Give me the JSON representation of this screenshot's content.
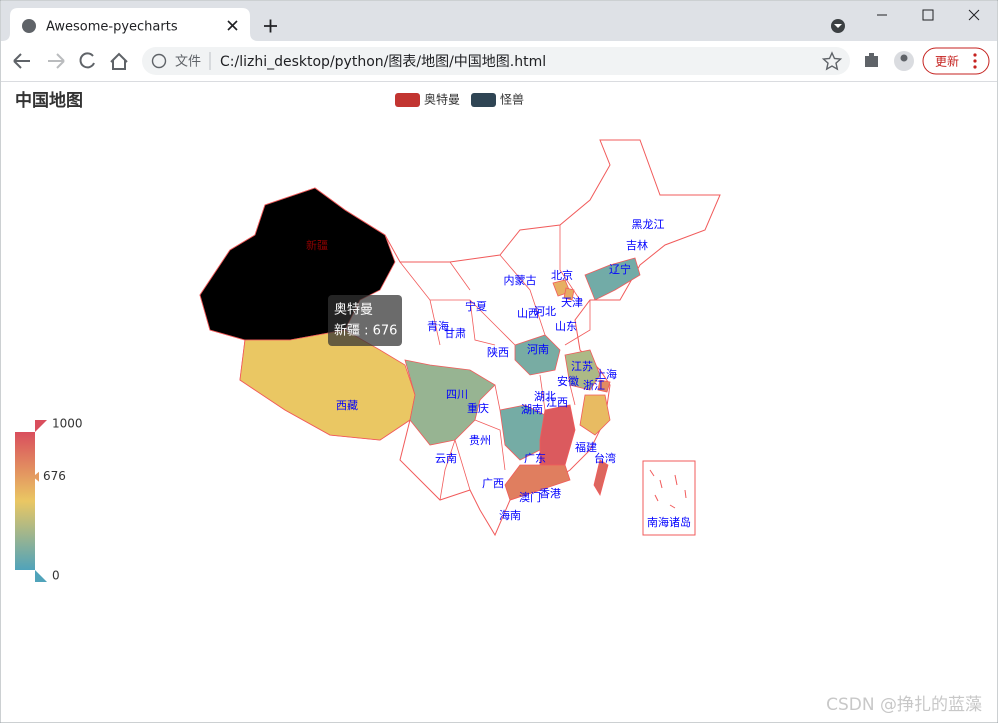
{
  "browser": {
    "tab_title": "Awesome-pyecharts",
    "address_prefix": "文件",
    "url": "C:/lizhi_desktop/python/图表/地图/中国地图.html",
    "update_button": "更新"
  },
  "chart_data": {
    "type": "map",
    "title": "中国地图",
    "legend": [
      {
        "name": "奥特曼",
        "color": "#c23531"
      },
      {
        "name": "怪兽",
        "color": "#2f4554"
      }
    ],
    "visual_map": {
      "range": [
        0,
        1000
      ],
      "colors": [
        "#50a3ba",
        "#eac763",
        "#d94e5d"
      ]
    },
    "highlight_color": "#000000",
    "border_color": "#f15b5b",
    "label_color": "#0000ff",
    "regions": [
      {
        "name": "新疆",
        "value": 676
      },
      {
        "name": "西藏",
        "value": 500
      },
      {
        "name": "四川",
        "value": 230
      },
      {
        "name": "河南",
        "value": 130
      },
      {
        "name": "辽宁",
        "value": 110
      },
      {
        "name": "湖南",
        "value": 120
      },
      {
        "name": "江西",
        "value": 950
      },
      {
        "name": "广东",
        "value": 800
      },
      {
        "name": "台湾",
        "value": 900
      },
      {
        "name": "浙江",
        "value": 550
      },
      {
        "name": "江苏",
        "value": 300
      },
      {
        "name": "北京",
        "value": 600
      },
      {
        "name": "天津",
        "value": 620
      },
      {
        "name": "上海",
        "value": 750
      },
      {
        "name": "黑龙江",
        "value": null
      },
      {
        "name": "吉林",
        "value": null
      },
      {
        "name": "内蒙古",
        "value": null
      },
      {
        "name": "河北",
        "value": null
      },
      {
        "name": "山西",
        "value": null
      },
      {
        "name": "山东",
        "value": null
      },
      {
        "name": "宁夏",
        "value": null
      },
      {
        "name": "青海",
        "value": null
      },
      {
        "name": "甘肃",
        "value": null
      },
      {
        "name": "陕西",
        "value": null
      },
      {
        "name": "安徽",
        "value": null
      },
      {
        "name": "湖北",
        "value": null
      },
      {
        "name": "重庆",
        "value": null
      },
      {
        "name": "贵州",
        "value": null
      },
      {
        "name": "云南",
        "value": null
      },
      {
        "name": "福建",
        "value": null
      },
      {
        "name": "广西",
        "value": null
      },
      {
        "name": "香港",
        "value": null
      },
      {
        "name": "澳门",
        "value": null
      },
      {
        "name": "海南",
        "value": null
      },
      {
        "name": "南海诸岛",
        "value": null
      }
    ],
    "tooltip": {
      "title": "奥特曼",
      "line": "新疆 : 676"
    }
  },
  "watermark": "CSDN @挣扎的蓝藻"
}
